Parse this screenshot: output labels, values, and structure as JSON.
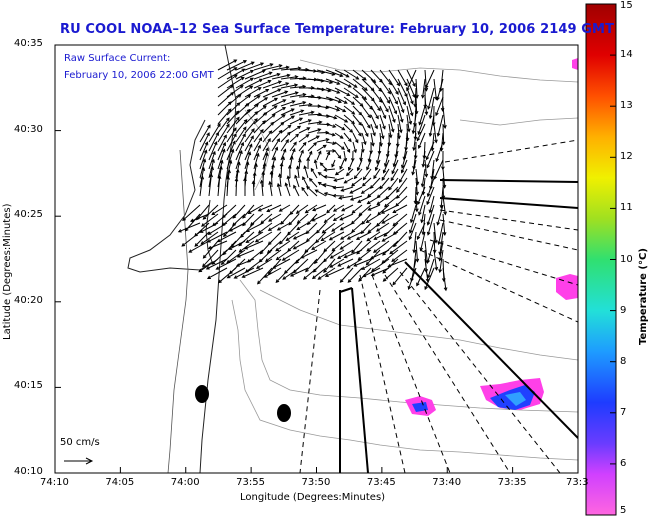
{
  "title": "RU COOL  NOAA–12  Sea Surface Temperature:  February 10, 2006 2149 GMT",
  "overlay": {
    "line1": "Raw Surface Current:",
    "line2": "February 10, 2006 22:00 GMT"
  },
  "scale_label": "50 cm/s",
  "axes": {
    "xlabel": "Longitude (Degrees:Minutes)",
    "ylabel": "Latitude (Degrees:Minutes)",
    "xticks": [
      "74:10",
      "74:05",
      "74:00",
      "73:55",
      "73:50",
      "73:45",
      "73:40",
      "73:35",
      "73:3"
    ],
    "yticks": [
      "40:35",
      "40:30",
      "40:25",
      "40:20",
      "40:15",
      "40:10"
    ]
  },
  "colorbar": {
    "title": "Temperature (°C)",
    "min": 5,
    "max": 15,
    "ticks": [
      "15",
      "14",
      "13",
      "12",
      "11",
      "10",
      "9",
      "8",
      "7",
      "6",
      "5"
    ],
    "colors": [
      "#ff66e0",
      "#d040ff",
      "#6a3cff",
      "#1e3cff",
      "#1e9cff",
      "#22e0d8",
      "#30e070",
      "#a0e020",
      "#f0f000",
      "#ffb000",
      "#ff5000",
      "#e00000",
      "#a00000"
    ]
  }
}
